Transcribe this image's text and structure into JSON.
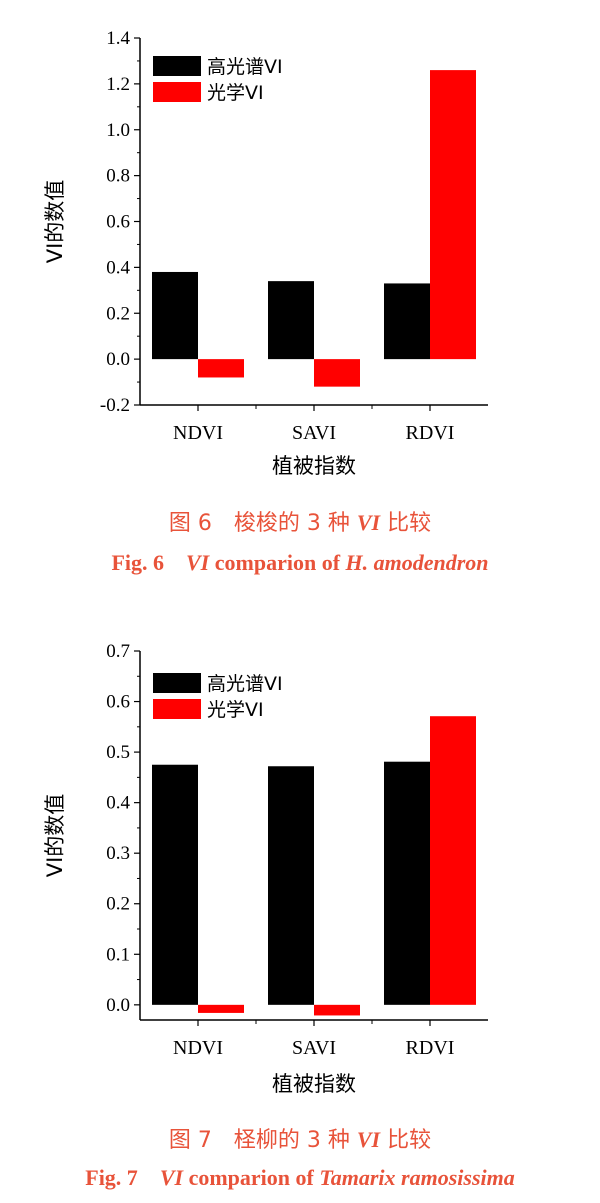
{
  "chart_data": [
    {
      "type": "bar",
      "categories": [
        "NDVI",
        "SAVI",
        "RDVI"
      ],
      "series": [
        {
          "name": "高光谱VI",
          "values": [
            0.38,
            0.34,
            0.33
          ]
        },
        {
          "name": "光学VI",
          "values": [
            -0.08,
            -0.12,
            1.26
          ]
        }
      ],
      "xlabel": "植被指数",
      "ylabel": "VI的数值",
      "ylim": [
        -0.2,
        1.4
      ],
      "yticks": [
        "-0.2",
        "0.0",
        "0.2",
        "0.4",
        "0.6",
        "0.8",
        "1.0",
        "1.2",
        "1.4"
      ],
      "legend_position": "top-left",
      "grid": false,
      "caption_cn": {
        "num": "图 6",
        "pre": "梭梭的 3 种 ",
        "vi": "VI",
        "post": " 比较"
      },
      "caption_en": {
        "num": "Fig. 6",
        "vi": "VI",
        "mid": " comparion of ",
        "species": "H. amodendron"
      }
    },
    {
      "type": "bar",
      "categories": [
        "NDVI",
        "SAVI",
        "RDVI"
      ],
      "series": [
        {
          "name": "高光谱VI",
          "values": [
            0.475,
            0.472,
            0.481
          ]
        },
        {
          "name": "光学VI",
          "values": [
            -0.016,
            -0.021,
            0.571
          ]
        }
      ],
      "xlabel": "植被指数",
      "ylabel": "VI的数值",
      "ylim": [
        -0.03,
        0.7
      ],
      "yticks": [
        "0.0",
        "0.1",
        "0.2",
        "0.3",
        "0.4",
        "0.5",
        "0.6",
        "0.7"
      ],
      "legend_position": "top-left",
      "grid": false,
      "caption_cn": {
        "num": "图 7",
        "pre": "柽柳的 3 种 ",
        "vi": "VI",
        "post": " 比较"
      },
      "caption_en": {
        "num": "Fig. 7",
        "vi": "VI",
        "mid": " comparion of ",
        "species": "Tamarix ramosissima"
      }
    }
  ],
  "colors": {
    "series_1": "#000000",
    "series_2": "#ff0000",
    "caption": "#e8533a"
  }
}
